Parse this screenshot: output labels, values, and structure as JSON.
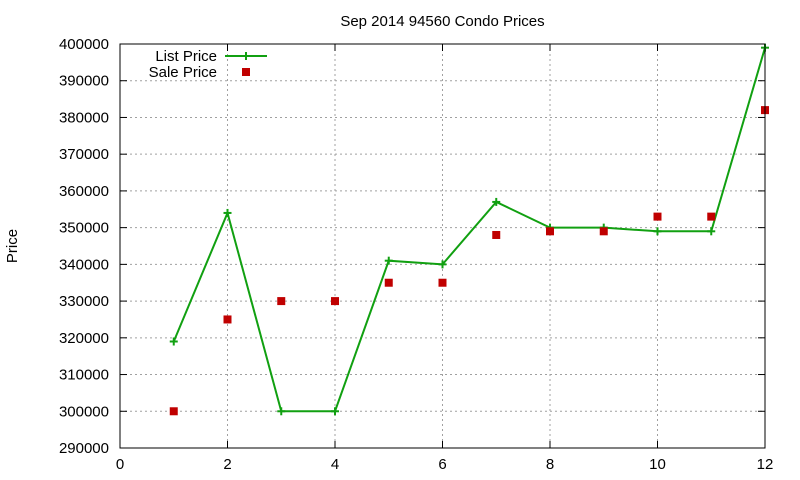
{
  "chart_data": {
    "type": "line",
    "title": "Sep 2014 94560 Condo Prices",
    "xlabel": "",
    "ylabel": "Price",
    "xlim": [
      0,
      12
    ],
    "ylim": [
      290000,
      400000
    ],
    "xticks": [
      0,
      2,
      4,
      6,
      8,
      10,
      12
    ],
    "yticks": [
      290000,
      300000,
      310000,
      320000,
      330000,
      340000,
      350000,
      360000,
      370000,
      380000,
      390000,
      400000
    ],
    "grid": true,
    "legend_position": "top-left",
    "series": [
      {
        "name": "List Price",
        "style": "line-with-plus-markers",
        "color": "#11a011",
        "x": [
          1,
          2,
          3,
          4,
          5,
          6,
          7,
          8,
          9,
          10,
          11,
          12
        ],
        "y": [
          319000,
          354000,
          300000,
          300000,
          341000,
          340000,
          357000,
          350000,
          350000,
          349000,
          349000,
          399000
        ]
      },
      {
        "name": "Sale Price",
        "style": "square-markers",
        "color": "#c00000",
        "x": [
          1,
          2,
          3,
          4,
          5,
          6,
          7,
          8,
          9,
          10,
          11,
          12
        ],
        "y": [
          300000,
          325000,
          330000,
          330000,
          335000,
          335000,
          348000,
          349000,
          349000,
          353000,
          353000,
          382000
        ]
      }
    ]
  }
}
